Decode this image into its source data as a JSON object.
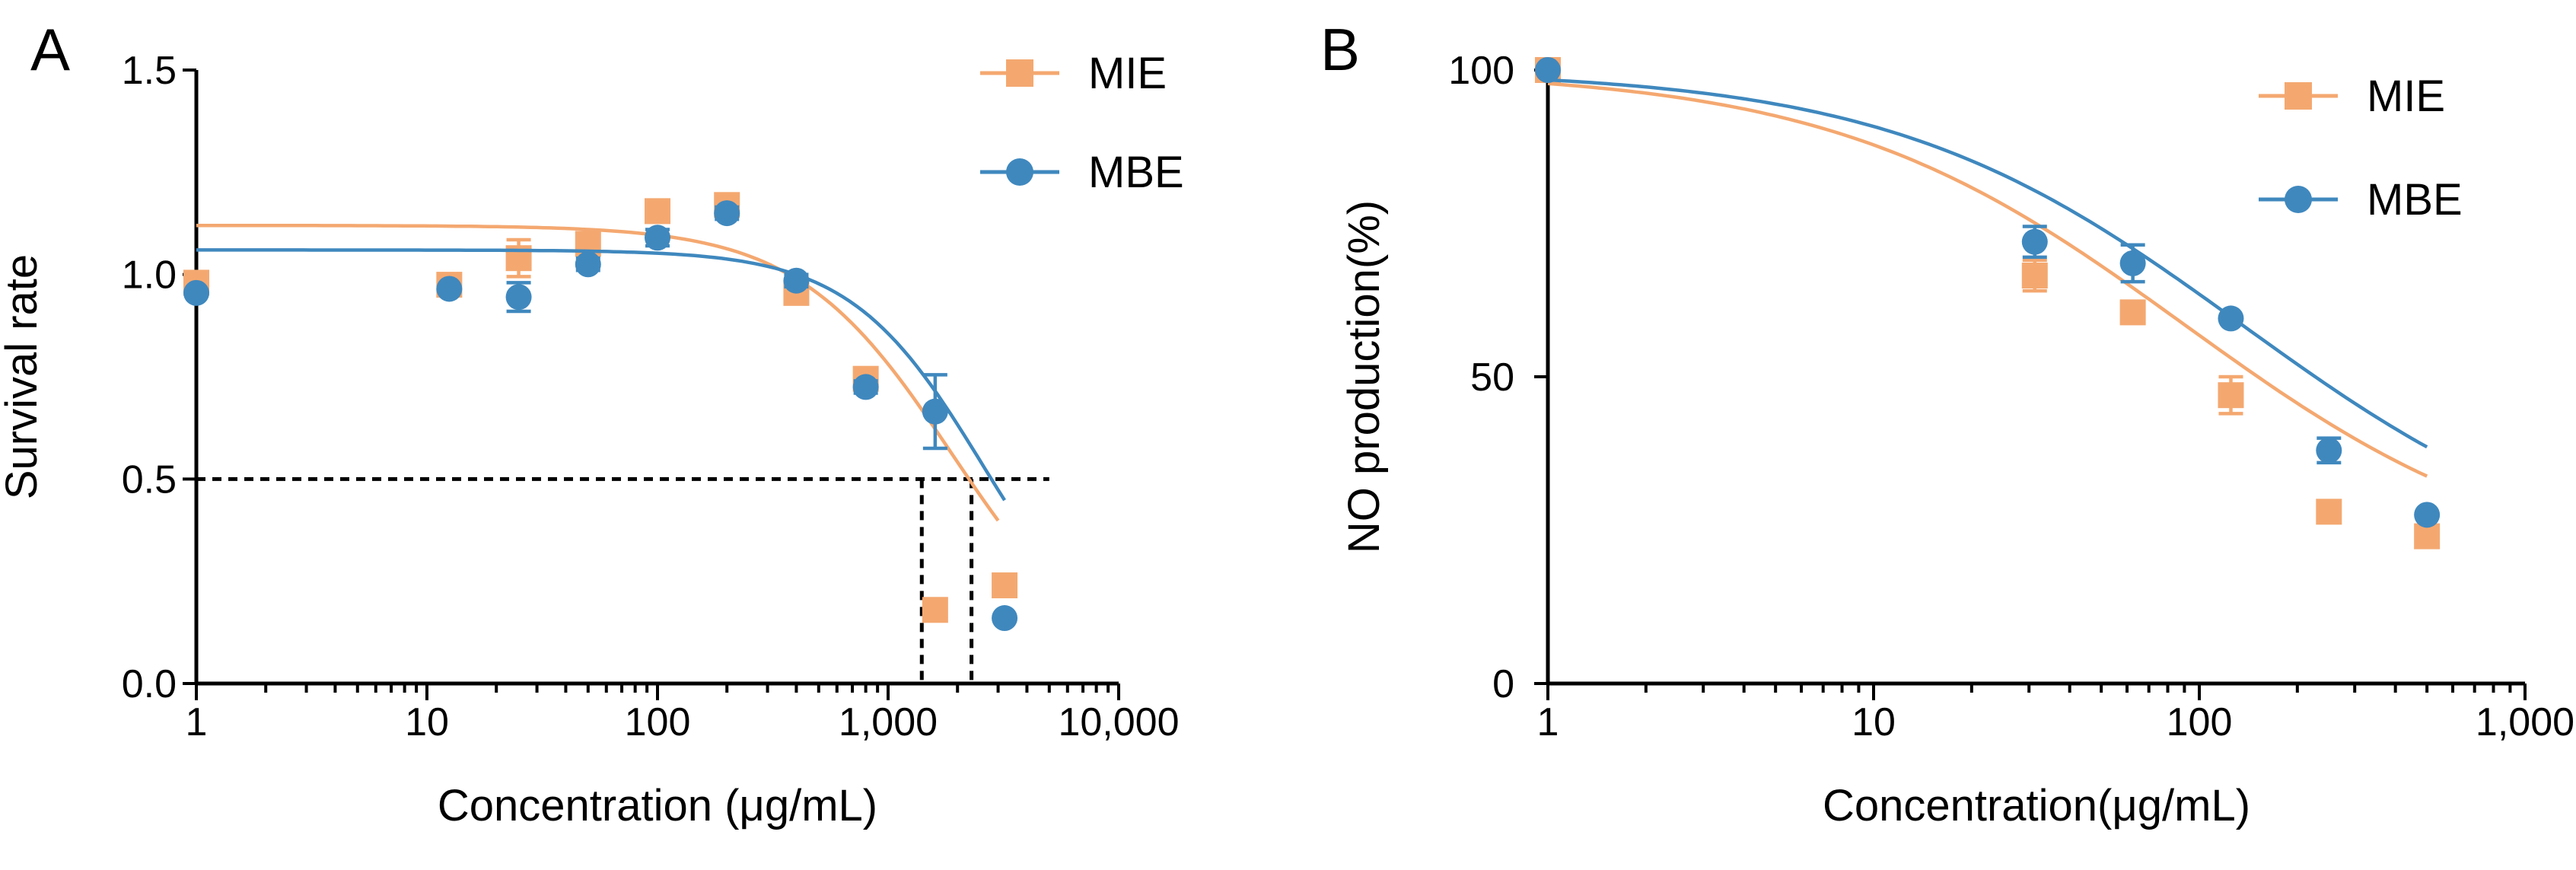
{
  "colors": {
    "mie": "#F4A870",
    "mbe": "#3F88BE",
    "axis": "#000000"
  },
  "chart_data": [
    {
      "panel": "A",
      "type": "scatter",
      "xscale": "log",
      "xlabel": "Concentration (μg/mL)",
      "ylabel": "Survival rate",
      "xlim": [
        1,
        10000
      ],
      "ylim": [
        0,
        1.5
      ],
      "xticks": [
        1,
        10,
        100,
        1000,
        10000
      ],
      "xtick_labels": [
        "1",
        "10",
        "100",
        "1,000",
        "10,000"
      ],
      "yticks": [
        0,
        0.5,
        1,
        1.5
      ],
      "ytick_labels": [
        "0.0",
        "0.5",
        "1.0",
        "1.5"
      ],
      "legend_position": "top-right",
      "reference_lines": {
        "y": 0.5,
        "x": [
          1400,
          2300
        ],
        "x_end": 5000
      },
      "series": [
        {
          "name": "MIE",
          "marker": "square",
          "color_key": "mie",
          "points": [
            {
              "x": 1,
              "y": 0.98,
              "err": 0
            },
            {
              "x": 12.5,
              "y": 0.975,
              "err": 0
            },
            {
              "x": 25,
              "y": 1.04,
              "err": 0.045
            },
            {
              "x": 50,
              "y": 1.075,
              "err": 0.02
            },
            {
              "x": 100,
              "y": 1.155,
              "err": 0.015
            },
            {
              "x": 200,
              "y": 1.17,
              "err": 0.015
            },
            {
              "x": 400,
              "y": 0.955,
              "err": 0.015
            },
            {
              "x": 800,
              "y": 0.745,
              "err": 0.015
            },
            {
              "x": 1600,
              "y": 0.18,
              "err": 0
            },
            {
              "x": 3200,
              "y": 0.24,
              "err": 0
            }
          ],
          "fit": {
            "top": 1.12,
            "bottom": 0,
            "ec50": 1900,
            "hill": 1.3,
            "x_range": [
              1,
              3000
            ]
          }
        },
        {
          "name": "MBE",
          "marker": "circle",
          "color_key": "mbe",
          "points": [
            {
              "x": 1,
              "y": 0.955,
              "err": 0
            },
            {
              "x": 12.5,
              "y": 0.965,
              "err": 0
            },
            {
              "x": 25,
              "y": 0.945,
              "err": 0.035
            },
            {
              "x": 50,
              "y": 1.025,
              "err": 0.015
            },
            {
              "x": 100,
              "y": 1.09,
              "err": 0.02
            },
            {
              "x": 200,
              "y": 1.15,
              "err": 0.015
            },
            {
              "x": 400,
              "y": 0.985,
              "err": 0.015
            },
            {
              "x": 800,
              "y": 0.725,
              "err": 0.015
            },
            {
              "x": 1600,
              "y": 0.665,
              "err": 0.09
            },
            {
              "x": 3200,
              "y": 0.16,
              "err": 0
            }
          ],
          "fit": {
            "top": 1.06,
            "bottom": 0,
            "ec50": 2600,
            "hill": 1.5,
            "x_range": [
              1,
              3200
            ]
          }
        }
      ],
      "legend": [
        "MIE",
        "MBE"
      ],
      "title": "A"
    },
    {
      "panel": "B",
      "type": "scatter",
      "xscale": "log",
      "xlabel": "Concentration(μg/mL)",
      "ylabel": "NO production(%)",
      "xlim": [
        1,
        1000
      ],
      "ylim": [
        0,
        100
      ],
      "xticks": [
        1,
        10,
        100,
        1000
      ],
      "xtick_labels": [
        "1",
        "10",
        "100",
        "1,000"
      ],
      "yticks": [
        0,
        50,
        100
      ],
      "ytick_labels": [
        "0",
        "50",
        "100"
      ],
      "legend_position": "top-right",
      "series": [
        {
          "name": "MIE",
          "marker": "square",
          "color_key": "mie",
          "points": [
            {
              "x": 1,
              "y": 100,
              "err": 0
            },
            {
              "x": 31.25,
              "y": 66.5,
              "err": 2.5
            },
            {
              "x": 62.5,
              "y": 60.5,
              "err": 1.5
            },
            {
              "x": 125,
              "y": 47,
              "err": 3
            },
            {
              "x": 250,
              "y": 28,
              "err": 0
            },
            {
              "x": 500,
              "y": 24,
              "err": 0
            }
          ],
          "fit": {
            "top": 100,
            "bottom": 17,
            "ec50": 90,
            "hill": 0.8,
            "x_range": [
              1,
              500
            ]
          }
        },
        {
          "name": "MBE",
          "marker": "circle",
          "color_key": "mbe",
          "points": [
            {
              "x": 1,
              "y": 100,
              "err": 0
            },
            {
              "x": 31.25,
              "y": 72,
              "err": 2.5
            },
            {
              "x": 62.5,
              "y": 68.5,
              "err": 3
            },
            {
              "x": 125,
              "y": 59.5,
              "err": 0
            },
            {
              "x": 250,
              "y": 38,
              "err": 2
            },
            {
              "x": 500,
              "y": 27.5,
              "err": 0
            }
          ],
          "fit": {
            "top": 100,
            "bottom": 17,
            "ec50": 135,
            "hill": 0.8,
            "x_range": [
              1,
              500
            ]
          }
        }
      ],
      "legend": [
        "MIE",
        "MBE"
      ],
      "title": "B"
    }
  ]
}
